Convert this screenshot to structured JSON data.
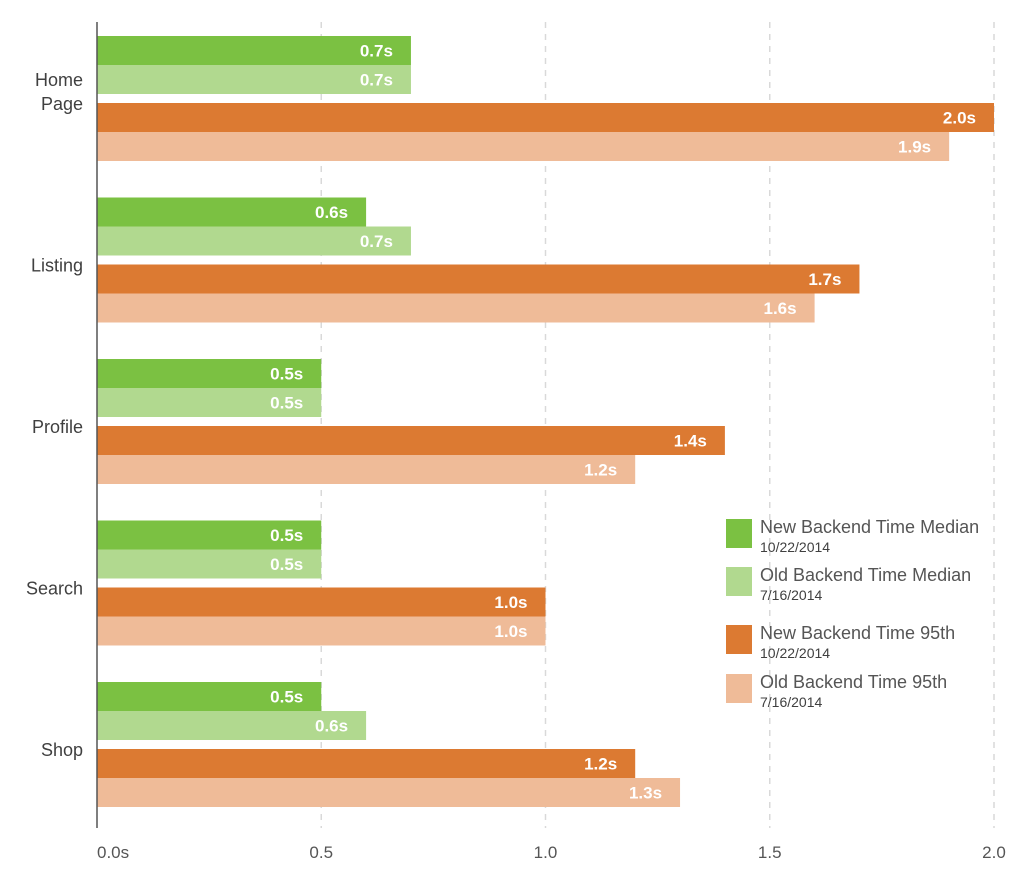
{
  "chart_data": {
    "type": "bar",
    "orientation": "horizontal",
    "categories": [
      "Home Page",
      "Listing",
      "Profile",
      "Search",
      "Shop"
    ],
    "series": [
      {
        "name": "New Backend Time Median",
        "date": "10/22/2014",
        "color": "#7bc142",
        "values": [
          0.7,
          0.6,
          0.5,
          0.5,
          0.5
        ],
        "labels": [
          "0.7s",
          "0.6s",
          "0.5s",
          "0.5s",
          "0.5s"
        ]
      },
      {
        "name": "Old Backend Time Median",
        "date": "7/16/2014",
        "color": "#b1d98f",
        "values": [
          0.7,
          0.7,
          0.5,
          0.5,
          0.6
        ],
        "labels": [
          "0.7s",
          "0.7s",
          "0.5s",
          "0.5s",
          "0.6s"
        ]
      },
      {
        "name": "New Backend Time 95th",
        "date": "10/22/2014",
        "color": "#dc7a32",
        "values": [
          2.0,
          1.7,
          1.4,
          1.0,
          1.2
        ],
        "labels": [
          "2.0s",
          "1.7s",
          "1.4s",
          "1.0s",
          "1.2s"
        ]
      },
      {
        "name": "Old Backend Time 95th",
        "date": "7/16/2014",
        "color": "#efbb98",
        "values": [
          1.9,
          1.6,
          1.2,
          1.0,
          1.3
        ],
        "labels": [
          "1.9s",
          "1.6s",
          "1.2s",
          "1.0s",
          "1.3s"
        ]
      }
    ],
    "x_ticks": [
      0,
      0.5,
      1.0,
      1.5,
      2.0
    ],
    "x_tick_labels": [
      "0.0s",
      "0.5",
      "1.0",
      "1.5",
      "2.0"
    ],
    "xlim": [
      0,
      2.0
    ],
    "grid": "vertical-dashed",
    "legend_position": "right"
  }
}
